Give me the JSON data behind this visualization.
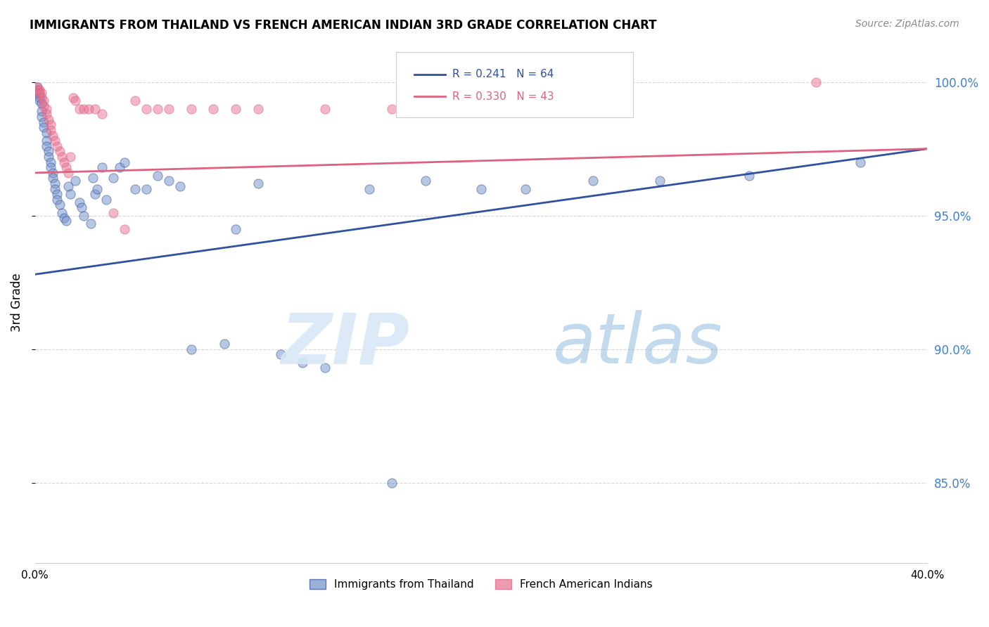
{
  "title": "IMMIGRANTS FROM THAILAND VS FRENCH AMERICAN INDIAN 3RD GRADE CORRELATION CHART",
  "source": "Source: ZipAtlas.com",
  "ylabel": "3rd Grade",
  "legend_labels": [
    "Immigrants from Thailand",
    "French American Indians"
  ],
  "blue_R": 0.241,
  "blue_N": 64,
  "pink_R": 0.33,
  "pink_N": 43,
  "xlim": [
    0.0,
    0.4
  ],
  "ylim": [
    0.82,
    1.015
  ],
  "yticks": [
    0.85,
    0.9,
    0.95,
    1.0
  ],
  "ytick_labels": [
    "85.0%",
    "90.0%",
    "95.0%",
    "100.0%"
  ],
  "xticks": [
    0.0,
    0.05,
    0.1,
    0.15,
    0.2,
    0.25,
    0.3,
    0.35,
    0.4
  ],
  "xtick_labels": [
    "0.0%",
    "",
    "",
    "",
    "",
    "",
    "",
    "",
    "40.0%"
  ],
  "blue_color": "#7090C8",
  "pink_color": "#E87090",
  "blue_line_color": "#3050A0",
  "pink_line_color": "#E06080",
  "right_axis_color": "#4080D0",
  "blue_trend": [
    0.0,
    0.4,
    0.928,
    0.975
  ],
  "pink_trend": [
    0.0,
    0.4,
    0.966,
    0.975
  ],
  "blue_x": [
    0.001,
    0.001,
    0.001,
    0.002,
    0.002,
    0.002,
    0.003,
    0.003,
    0.003,
    0.004,
    0.004,
    0.005,
    0.005,
    0.005,
    0.006,
    0.006,
    0.007,
    0.007,
    0.008,
    0.008,
    0.009,
    0.009,
    0.01,
    0.01,
    0.011,
    0.012,
    0.013,
    0.014,
    0.015,
    0.016,
    0.018,
    0.02,
    0.021,
    0.022,
    0.025,
    0.026,
    0.027,
    0.028,
    0.03,
    0.032,
    0.035,
    0.038,
    0.04,
    0.045,
    0.05,
    0.055,
    0.06,
    0.065,
    0.07,
    0.085,
    0.09,
    0.1,
    0.11,
    0.12,
    0.13,
    0.15,
    0.16,
    0.175,
    0.2,
    0.22,
    0.25,
    0.28,
    0.32,
    0.37
  ],
  "blue_y": [
    0.998,
    0.997,
    0.996,
    0.996,
    0.994,
    0.993,
    0.992,
    0.989,
    0.987,
    0.985,
    0.983,
    0.981,
    0.978,
    0.976,
    0.974,
    0.972,
    0.97,
    0.968,
    0.966,
    0.964,
    0.962,
    0.96,
    0.958,
    0.956,
    0.954,
    0.951,
    0.949,
    0.948,
    0.961,
    0.958,
    0.963,
    0.955,
    0.953,
    0.95,
    0.947,
    0.964,
    0.958,
    0.96,
    0.968,
    0.956,
    0.964,
    0.968,
    0.97,
    0.96,
    0.96,
    0.965,
    0.963,
    0.961,
    0.9,
    0.902,
    0.945,
    0.962,
    0.898,
    0.895,
    0.893,
    0.96,
    0.85,
    0.963,
    0.96,
    0.96,
    0.963,
    0.963,
    0.965,
    0.97
  ],
  "pink_x": [
    0.001,
    0.001,
    0.002,
    0.002,
    0.003,
    0.003,
    0.004,
    0.004,
    0.005,
    0.005,
    0.006,
    0.007,
    0.007,
    0.008,
    0.009,
    0.01,
    0.011,
    0.012,
    0.013,
    0.014,
    0.015,
    0.016,
    0.017,
    0.018,
    0.02,
    0.022,
    0.024,
    0.027,
    0.03,
    0.035,
    0.04,
    0.045,
    0.05,
    0.055,
    0.06,
    0.07,
    0.08,
    0.09,
    0.1,
    0.13,
    0.16,
    0.2,
    0.35
  ],
  "pink_y": [
    0.998,
    0.997,
    0.997,
    0.996,
    0.996,
    0.994,
    0.993,
    0.991,
    0.99,
    0.988,
    0.986,
    0.984,
    0.982,
    0.98,
    0.978,
    0.976,
    0.974,
    0.972,
    0.97,
    0.968,
    0.966,
    0.972,
    0.994,
    0.993,
    0.99,
    0.99,
    0.99,
    0.99,
    0.988,
    0.951,
    0.945,
    0.993,
    0.99,
    0.99,
    0.99,
    0.99,
    0.99,
    0.99,
    0.99,
    0.99,
    0.99,
    0.99,
    1.0
  ]
}
